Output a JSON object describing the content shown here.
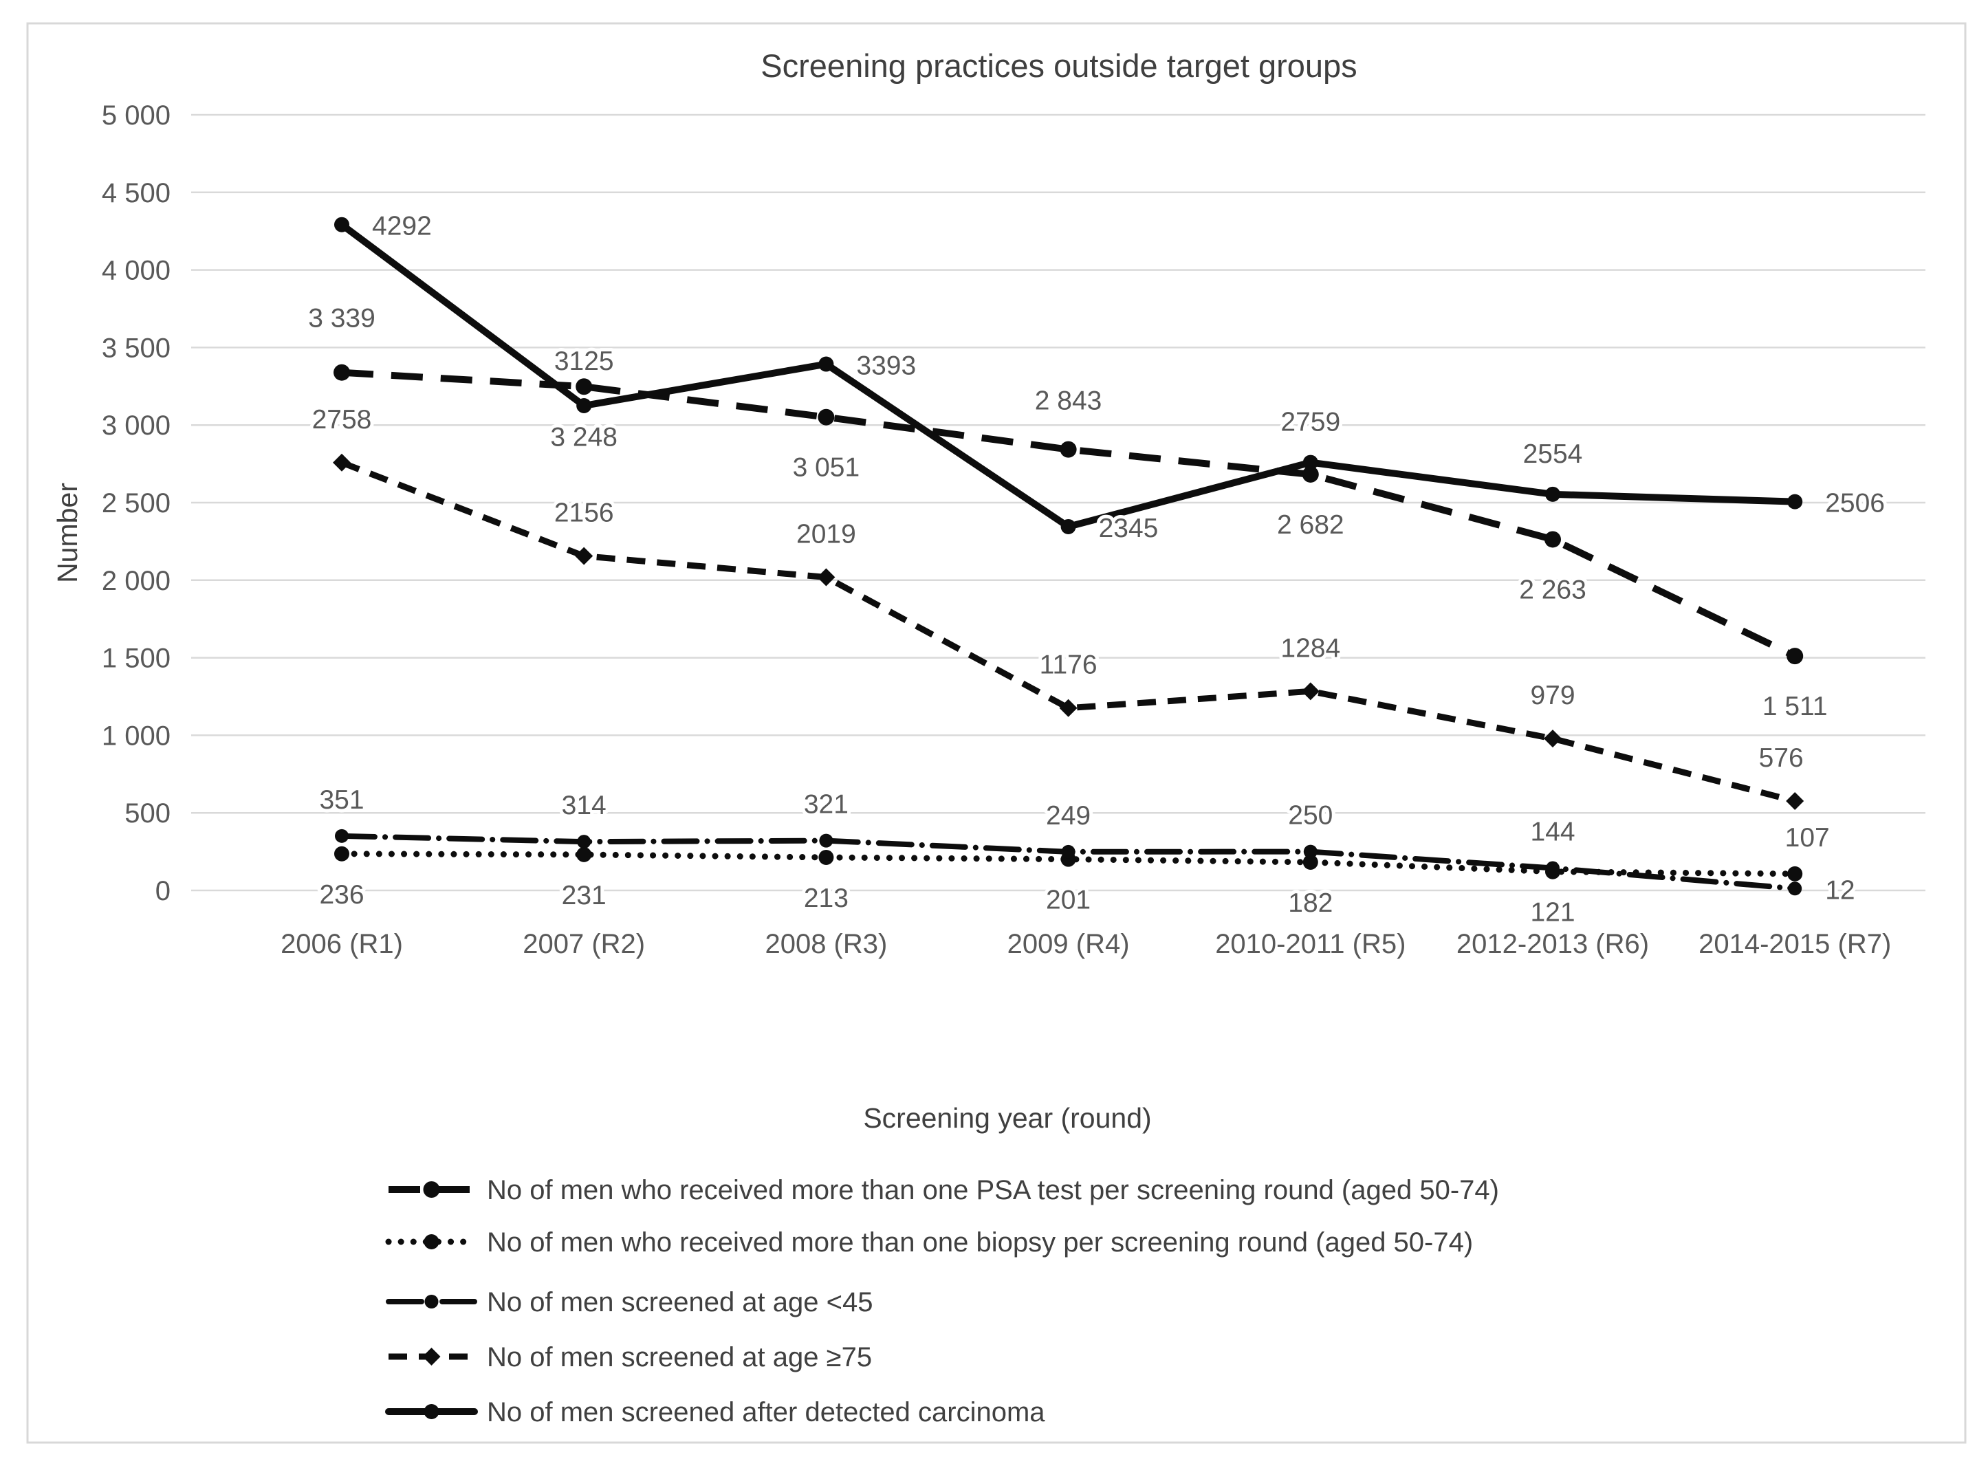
{
  "figure": {
    "title": "Screening practices outside target groups",
    "y_axis_title": "Number",
    "x_axis_title": "Screening year (round)"
  },
  "chart_data": {
    "type": "line",
    "title": "Screening practices outside target groups",
    "xlabel": "Screening year (round)",
    "ylabel": "Number",
    "ylim": [
      0,
      5000
    ],
    "ytick_step": 500,
    "ytick_labels": [
      "0",
      "500",
      "1 000",
      "1 500",
      "2 000",
      "2 500",
      "3 000",
      "3 500",
      "4 000",
      "4 500",
      "5 000"
    ],
    "grid": "horizontal-only",
    "legend_position": "bottom-left",
    "categories": [
      "2006 (R1)",
      "2007 (R2)",
      "2008 (R3)",
      "2009 (R4)",
      "2010-2011 (R5)",
      "2012-2013 (R6)",
      "2014-2015 (R7)"
    ],
    "series": [
      {
        "name": "No of men who received more than one PSA test per screening round (aged 50-74)",
        "style": "long-dash",
        "marker": "circle",
        "values": [
          3339,
          3248,
          3051,
          2843,
          2682,
          2263,
          1511
        ],
        "labels": [
          "3 339",
          "3 248",
          "3 051",
          "2 843",
          "2 682",
          "2 263",
          "1 511"
        ],
        "label_pos": [
          "above",
          "below",
          "below",
          "above",
          "below",
          "below",
          "below"
        ]
      },
      {
        "name": "No of men who received more than one biopsy per screening round (aged 50-74)",
        "style": "dotted",
        "marker": "circle",
        "values": [
          236,
          231,
          213,
          201,
          182,
          121,
          107
        ],
        "labels": [
          "236",
          "231",
          "213",
          "201",
          "182",
          "121",
          "107"
        ],
        "label_pos": [
          "below",
          "below",
          "below",
          "below",
          "below",
          "below",
          "above"
        ]
      },
      {
        "name": "No of men screened at age <45",
        "style": "dash-dot",
        "marker": "circle",
        "values": [
          351,
          314,
          321,
          249,
          250,
          144,
          12
        ],
        "labels": [
          "351",
          "314",
          "321",
          "249",
          "250",
          "144",
          "12"
        ],
        "label_pos": [
          "above",
          "above",
          "above",
          "above",
          "above",
          "above",
          "right"
        ]
      },
      {
        "name": "No of men screened at age ≥75",
        "style": "medium-dash",
        "marker": "diamond",
        "values": [
          2758,
          2156,
          2019,
          1176,
          1284,
          979,
          576
        ],
        "labels": [
          "2758",
          "2156",
          "2019",
          "1176",
          "1284",
          "979",
          "576"
        ],
        "label_pos": [
          "above",
          "above",
          "above",
          "above",
          "above",
          "above",
          "above"
        ]
      },
      {
        "name": "No of men screened after detected carcinoma",
        "style": "solid",
        "marker": "circle",
        "values": [
          4292,
          3125,
          3393,
          2345,
          2759,
          2554,
          2506
        ],
        "labels": [
          "4292",
          "3125",
          "3393",
          "2345",
          "2759",
          "2554",
          "2506"
        ],
        "label_pos": [
          "right",
          "above",
          "right",
          "right",
          "above",
          "above",
          "right"
        ]
      }
    ]
  }
}
